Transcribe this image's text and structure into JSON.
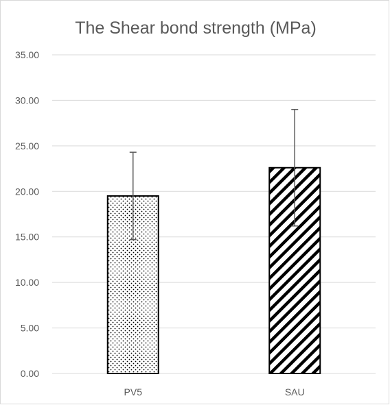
{
  "chart_data": {
    "type": "bar",
    "title": "The Shear bond strength (MPa)",
    "xlabel": "",
    "ylabel": "",
    "categories": [
      "PV5",
      "SAU"
    ],
    "values": [
      19.5,
      22.6
    ],
    "error_plus": [
      4.8,
      6.4
    ],
    "error_minus": [
      4.8,
      6.4
    ],
    "ylim": [
      0,
      35
    ],
    "yticks": [
      0,
      5,
      10,
      15,
      20,
      25,
      30,
      35
    ],
    "ytick_labels": [
      "0.00",
      "5.00",
      "10.00",
      "15.00",
      "20.00",
      "25.00",
      "30.00",
      "35.00"
    ],
    "grid": true,
    "legend": "none",
    "patterns": [
      "dots",
      "diagonal-stripes"
    ]
  }
}
